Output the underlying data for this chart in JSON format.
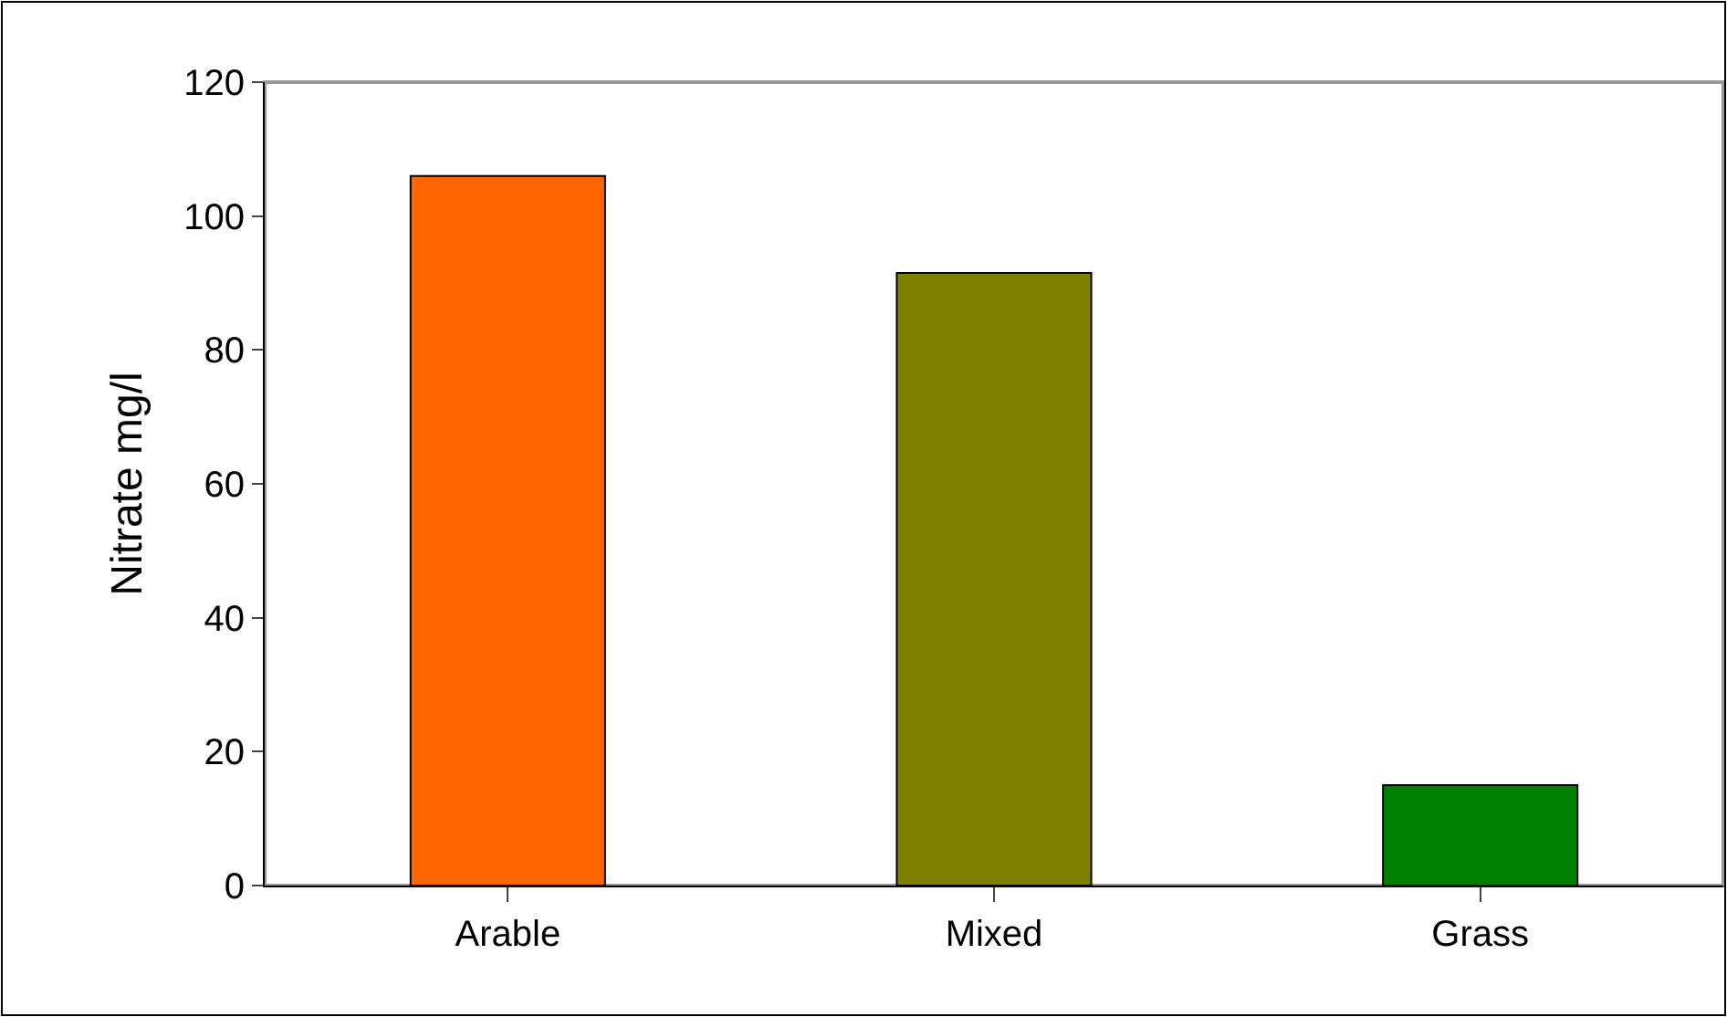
{
  "chart_data": {
    "type": "bar",
    "ylabel": "Nitrate mg/l",
    "categories": [
      "Arable",
      "Mixed",
      "Grass"
    ],
    "values": [
      106,
      91.5,
      15
    ],
    "colors": [
      "#ff6600",
      "#808000",
      "#008000"
    ],
    "ylim": [
      0,
      120
    ],
    "yticks": [
      0,
      20,
      40,
      60,
      80,
      100,
      120
    ],
    "grid": false,
    "legend": false
  }
}
